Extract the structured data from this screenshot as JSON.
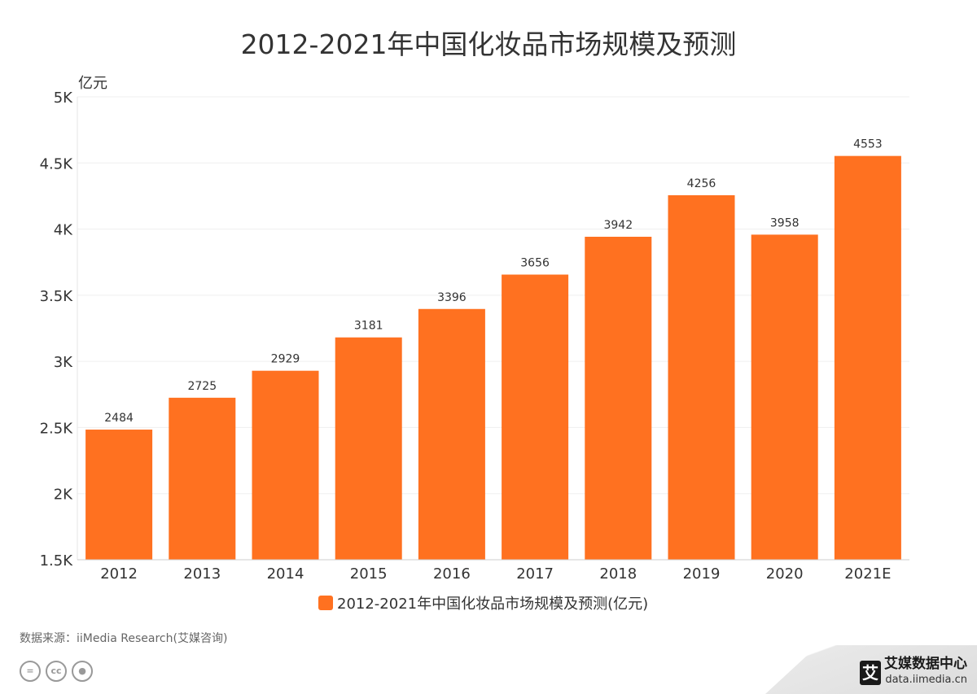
{
  "chart_data": {
    "type": "bar",
    "title": "2012-2021年中国化妆品市场规模及预测",
    "ylabel": "亿元",
    "xlabel": "",
    "categories": [
      "2012",
      "2013",
      "2014",
      "2015",
      "2016",
      "2017",
      "2018",
      "2019",
      "2020",
      "2021E"
    ],
    "series": [
      {
        "name": "2012-2021年中国化妆品市场规模及预测(亿元)",
        "values": [
          2484,
          2725,
          2929,
          3181,
          3396,
          3656,
          3942,
          4256,
          3958,
          4553
        ],
        "color": "#FF7120"
      }
    ],
    "ylim": [
      1500,
      5000
    ],
    "yticks": [
      1500,
      2000,
      2500,
      3000,
      3500,
      4000,
      4500,
      5000
    ],
    "ytick_labels": [
      "1.5K",
      "2K",
      "2.5K",
      "3K",
      "3.5K",
      "4K",
      "4.5K",
      "5K"
    ],
    "grid": true,
    "legend": "bottom"
  },
  "footer": {
    "source": "数据来源：iiMedia Research(艾媒咨询)",
    "brand_name": "艾媒数据中心",
    "brand_url": "data.iimedia.cn",
    "brand_logo": "艾",
    "license_icons": [
      "cc-nd-icon",
      "cc-icon",
      "cc-by-icon"
    ],
    "license_nd": "=",
    "license_cc": "cc"
  }
}
